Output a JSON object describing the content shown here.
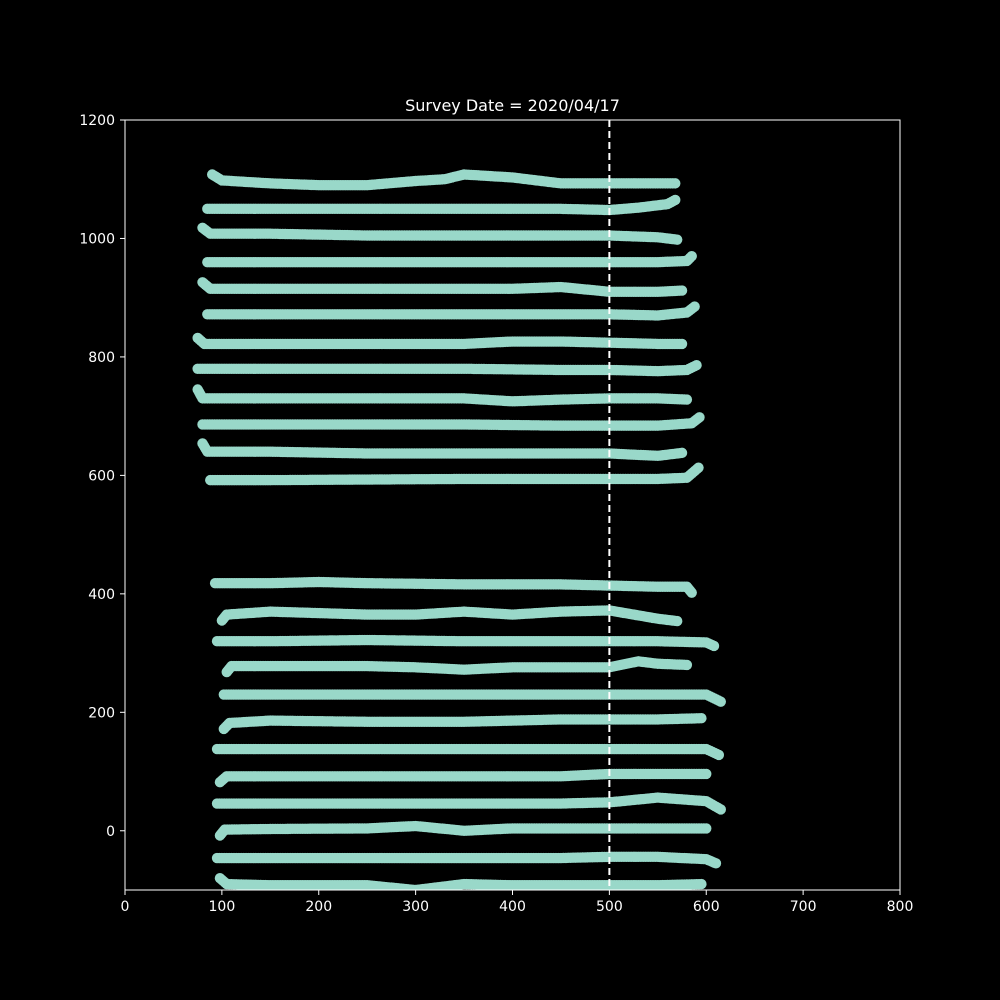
{
  "chart_data": {
    "type": "scatter",
    "title": "Survey Date = 2020/04/17",
    "xlabel": "",
    "ylabel": "",
    "xlim": [
      0,
      800
    ],
    "ylim": [
      -100,
      1200
    ],
    "xticks": [
      0,
      100,
      200,
      300,
      400,
      500,
      600,
      700,
      800
    ],
    "yticks": [
      0,
      200,
      400,
      600,
      800,
      1000,
      1200
    ],
    "grid": false,
    "background": "#000000",
    "axis_color": "#ffffff",
    "point_color": "#99d8c9",
    "reference_line": {
      "orientation": "vertical",
      "x": 500,
      "style": "dashed",
      "color": "#ffffff"
    },
    "series": [
      {
        "x": [
          90,
          100,
          150,
          200,
          250,
          300,
          330,
          350,
          400,
          450,
          500,
          550,
          568
        ],
        "y": [
          1108,
          1098,
          1093,
          1090,
          1090,
          1097,
          1100,
          1108,
          1103,
          1093,
          1093,
          1093,
          1093
        ]
      },
      {
        "x": [
          85,
          150,
          250,
          350,
          450,
          500,
          530,
          560,
          568
        ],
        "y": [
          1050,
          1050,
          1050,
          1050,
          1050,
          1048,
          1052,
          1058,
          1065
        ]
      },
      {
        "x": [
          80,
          88,
          150,
          250,
          350,
          450,
          500,
          550,
          570
        ],
        "y": [
          1018,
          1008,
          1008,
          1005,
          1005,
          1005,
          1005,
          1002,
          998
        ]
      },
      {
        "x": [
          85,
          150,
          250,
          350,
          450,
          550,
          580,
          585
        ],
        "y": [
          960,
          960,
          960,
          960,
          960,
          960,
          962,
          970
        ]
      },
      {
        "x": [
          80,
          88,
          150,
          250,
          350,
          400,
          450,
          500,
          550,
          575
        ],
        "y": [
          926,
          915,
          915,
          915,
          915,
          915,
          918,
          910,
          910,
          912
        ]
      },
      {
        "x": [
          85,
          150,
          250,
          350,
          450,
          500,
          550,
          580,
          588
        ],
        "y": [
          872,
          872,
          872,
          872,
          872,
          872,
          870,
          875,
          885
        ]
      },
      {
        "x": [
          75,
          82,
          150,
          250,
          350,
          400,
          450,
          500,
          550,
          575
        ],
        "y": [
          832,
          822,
          822,
          822,
          822,
          826,
          826,
          824,
          822,
          822
        ]
      },
      {
        "x": [
          75,
          150,
          250,
          350,
          450,
          500,
          550,
          580,
          590
        ],
        "y": [
          780,
          780,
          780,
          780,
          778,
          778,
          776,
          778,
          786
        ]
      },
      {
        "x": [
          75,
          80,
          150,
          250,
          350,
          400,
          450,
          500,
          550,
          580
        ],
        "y": [
          745,
          730,
          730,
          730,
          730,
          725,
          728,
          730,
          730,
          728
        ]
      },
      {
        "x": [
          80,
          150,
          250,
          350,
          450,
          500,
          550,
          585,
          593
        ],
        "y": [
          686,
          686,
          686,
          686,
          684,
          684,
          684,
          688,
          698
        ]
      },
      {
        "x": [
          80,
          85,
          150,
          250,
          350,
          450,
          500,
          550,
          575
        ],
        "y": [
          654,
          640,
          640,
          637,
          637,
          637,
          637,
          633,
          638
        ]
      },
      {
        "x": [
          88,
          150,
          250,
          350,
          450,
          550,
          580,
          592
        ],
        "y": [
          592,
          592,
          593,
          594,
          594,
          594,
          596,
          613
        ]
      },
      {
        "x": [
          93,
          150,
          200,
          250,
          350,
          450,
          500,
          550,
          580,
          585
        ],
        "y": [
          418,
          418,
          420,
          418,
          416,
          416,
          414,
          412,
          412,
          402
        ]
      },
      {
        "x": [
          100,
          105,
          150,
          250,
          300,
          350,
          400,
          450,
          500,
          550,
          570
        ],
        "y": [
          355,
          365,
          370,
          365,
          365,
          370,
          365,
          370,
          372,
          358,
          354
        ]
      },
      {
        "x": [
          95,
          150,
          250,
          350,
          450,
          550,
          600,
          608
        ],
        "y": [
          320,
          320,
          322,
          320,
          320,
          320,
          318,
          312
        ]
      },
      {
        "x": [
          105,
          110,
          150,
          250,
          300,
          350,
          400,
          450,
          500,
          530,
          550,
          580
        ],
        "y": [
          268,
          278,
          278,
          278,
          276,
          272,
          276,
          276,
          276,
          286,
          282,
          280
        ]
      },
      {
        "x": [
          102,
          150,
          250,
          350,
          450,
          550,
          600,
          615
        ],
        "y": [
          230,
          230,
          230,
          230,
          230,
          230,
          230,
          218
        ]
      },
      {
        "x": [
          102,
          108,
          150,
          250,
          350,
          450,
          550,
          595
        ],
        "y": [
          172,
          182,
          186,
          184,
          184,
          188,
          188,
          190
        ]
      },
      {
        "x": [
          95,
          150,
          250,
          350,
          450,
          500,
          550,
          600,
          613
        ],
        "y": [
          138,
          138,
          138,
          138,
          138,
          138,
          138,
          138,
          128
        ]
      },
      {
        "x": [
          98,
          105,
          150,
          250,
          350,
          450,
          500,
          550,
          600
        ],
        "y": [
          82,
          92,
          92,
          92,
          92,
          92,
          96,
          96,
          96
        ]
      },
      {
        "x": [
          95,
          150,
          250,
          350,
          450,
          500,
          550,
          600,
          615
        ],
        "y": [
          46,
          46,
          46,
          46,
          46,
          48,
          56,
          50,
          36
        ]
      },
      {
        "x": [
          98,
          103,
          150,
          250,
          300,
          350,
          400,
          450,
          500,
          550,
          600
        ],
        "y": [
          -8,
          2,
          3,
          4,
          8,
          0,
          4,
          4,
          4,
          4,
          4
        ]
      },
      {
        "x": [
          95,
          150,
          250,
          350,
          450,
          500,
          550,
          600,
          610
        ],
        "y": [
          -46,
          -46,
          -46,
          -46,
          -46,
          -44,
          -44,
          -48,
          -55
        ]
      },
      {
        "x": [
          98,
          105,
          150,
          250,
          300,
          350,
          400,
          450,
          500,
          550,
          595
        ],
        "y": [
          -80,
          -90,
          -92,
          -92,
          -100,
          -90,
          -92,
          -92,
          -92,
          -92,
          -90
        ]
      }
    ]
  }
}
